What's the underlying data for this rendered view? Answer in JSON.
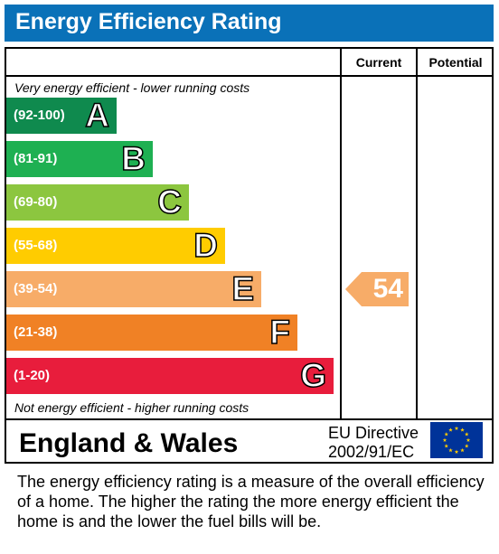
{
  "header": {
    "title": "Energy Efficiency Rating"
  },
  "columns": {
    "current": "Current",
    "potential": "Potential"
  },
  "notes": {
    "top": "Very energy efficient - lower running costs",
    "bottom": "Not energy efficient - higher running costs"
  },
  "chart_data": {
    "type": "bar",
    "title": "Energy Efficiency Rating",
    "bands": [
      {
        "range": "(92-100)",
        "letter": "A",
        "color": "#0f8a4e"
      },
      {
        "range": "(81-91)",
        "letter": "B",
        "color": "#1eb052"
      },
      {
        "range": "(69-80)",
        "letter": "C",
        "color": "#8cc63f"
      },
      {
        "range": "(55-68)",
        "letter": "D",
        "color": "#ffcc00"
      },
      {
        "range": "(39-54)",
        "letter": "E",
        "color": "#f7ac68"
      },
      {
        "range": "(21-38)",
        "letter": "F",
        "color": "#f08125"
      },
      {
        "range": "(1-20)",
        "letter": "G",
        "color": "#e81d3c"
      }
    ],
    "current": {
      "value": "54",
      "band": "E",
      "color": "#f7ac68"
    },
    "potential": null
  },
  "footer": {
    "region": "England & Wales",
    "directive_line1": "EU Directive",
    "directive_line2": "2002/91/EC",
    "flag_colors": {
      "field": "#003399",
      "stars": "#ffcc00"
    }
  },
  "description": "The energy efficiency rating is a measure of the overall efficiency of a home.  The higher the rating the more energy efficient the home is and the lower the fuel bills will be."
}
